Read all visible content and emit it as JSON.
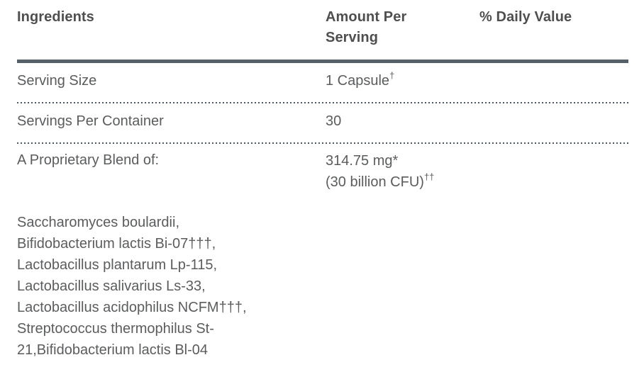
{
  "table": {
    "headers": {
      "ingredients": "Ingredients",
      "amount_per_serving": "Amount Per Serving",
      "daily_value": "% Daily Value"
    },
    "rows": [
      {
        "label": "Serving Size",
        "amount": "1 Capsule",
        "amount_sup": "†",
        "daily_value": ""
      },
      {
        "label": "Servings Per Container",
        "amount": "30",
        "amount_sup": "",
        "daily_value": ""
      },
      {
        "label": "A Proprietary Blend of:",
        "amount_line1": "314.75 mg*",
        "amount_line2": "(30 billion CFU)",
        "amount_line2_sup": "††",
        "daily_value": ""
      }
    ],
    "blend_lines": [
      "Saccharomyces boulardii,",
      "Bifidobacterium lactis Bi-07†††,",
      "Lactobacillus plantarum Lp-115,",
      "Lactobacillus salivarius Ls-33,",
      "Lactobacillus acidophilus NCFM†††,",
      "Streptococcus thermophilus St-",
      "21,Bifidobacterium lactis Bl-04"
    ],
    "colors": {
      "rule": "#556069",
      "dotted_rule": "#4e5864",
      "header_text": "#4f4f4f",
      "body_text": "#5a5c5e"
    }
  }
}
